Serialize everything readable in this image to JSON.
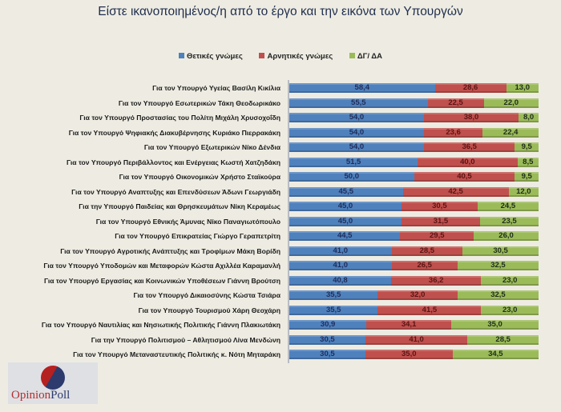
{
  "chart_data": {
    "type": "bar",
    "orientation": "horizontal",
    "stacked": true,
    "title": "Είστε ικανοποιημένος/η από το έργο και την εικόνα των Υπουργών",
    "legend_position": "top",
    "grid": false,
    "xlim": [
      0,
      100
    ],
    "categories": [
      "Για τον Υπουργό Υγείας Βασίλη Κικίλια",
      "Για τον Υπουργό Εσωτερικών Τάκη Θεοδωρικάκο",
      "Για τον Υπουργό Προστασίας του Πολίτη  Μιχάλη Χρυσοχοΐδη",
      "Για τον Υπουργό Ψηφιακής  Διακυβέρνησης Κυριάκο Πιερρακάκη",
      "Για τον Υπουργό Εξωτερικών Νίκο Δένδια",
      "Για τον Υπουργό Περιβάλλοντος  και Ενέργειας Κωστή Χατζηδάκη",
      "Για τον Υπουργό Οικονομικών  Χρήστο Σταϊκούρα",
      "Για τον Υπουργό Αναπτυξης και Επενδύσεων Άδωνι Γεωργιάδη",
      "Για την Υπουργό Παιδείας και Θρησκευμάτων Νίκη Κεραμέως",
      "Για τον Υπουργό Εθνικής Άμυνας Νίκο Παναγιωτόπουλο",
      "Για τον Υπουργό Επικρατείας Γιώργο Γεραπετρίτη",
      "Για τον Υπουργό Αγροτικής Ανάπτυξης και Τροφίμων Μάκη Βορίδη",
      "Για τον Υπουργό Υποδομών και Μεταφορών Κώστα Αχιλλέα Καραμανλή",
      "Για τον Υπουργό Εργασίας και Κοινωνικών Υποθέσεων Γιάννη Βρούτση",
      "Για τον Υπουργό Δικαιοσύνης  Κώστα Τσιάρα",
      "Για τον Υπουργό Τουρισμού  Χάρη Θεοχάρη",
      "Για τον Υπουργό Ναυτιλίας και Νησιωτικής Πολιτικής  Γιάννη Πλακιωτάκη",
      "Για την Υπουργό Πολιτισμού  – Αθλητισμού  Λίνα Μενδώνη",
      "Για τον Υπουργό Μεταναστευτικής Πολιτικής  κ. Νότη Μηταράκη"
    ],
    "series": [
      {
        "name": "Θετικές γνώμες",
        "color": "#4f81bd",
        "label_color": "#1f2d5a",
        "values": [
          58.4,
          55.5,
          54.0,
          54.0,
          54.0,
          51.5,
          50.0,
          45.5,
          45.0,
          45.0,
          44.5,
          41.0,
          41.0,
          40.8,
          35.5,
          35.5,
          30.9,
          30.5,
          30.5
        ]
      },
      {
        "name": "Αρνητικές γνώμες",
        "color": "#c0504d",
        "label_color": "#5a1414",
        "values": [
          28.6,
          22.5,
          38.0,
          23.6,
          36.5,
          40.0,
          40.5,
          42.5,
          30.5,
          31.5,
          29.5,
          28.5,
          26.5,
          36.2,
          32.0,
          41.5,
          34.1,
          41.0,
          35.0
        ]
      },
      {
        "name": "ΔΓ/ ΔΑ",
        "color": "#9bbb59",
        "label_color": "#1f2d1a",
        "values": [
          13.0,
          22.0,
          8.0,
          22.4,
          9.5,
          8.5,
          9.5,
          12.0,
          24.5,
          23.5,
          26.0,
          30.5,
          32.5,
          23.0,
          32.5,
          23.0,
          35.0,
          28.5,
          34.5
        ]
      }
    ]
  },
  "logo": {
    "text_a": "Opinion",
    "text_b": "Poll"
  }
}
